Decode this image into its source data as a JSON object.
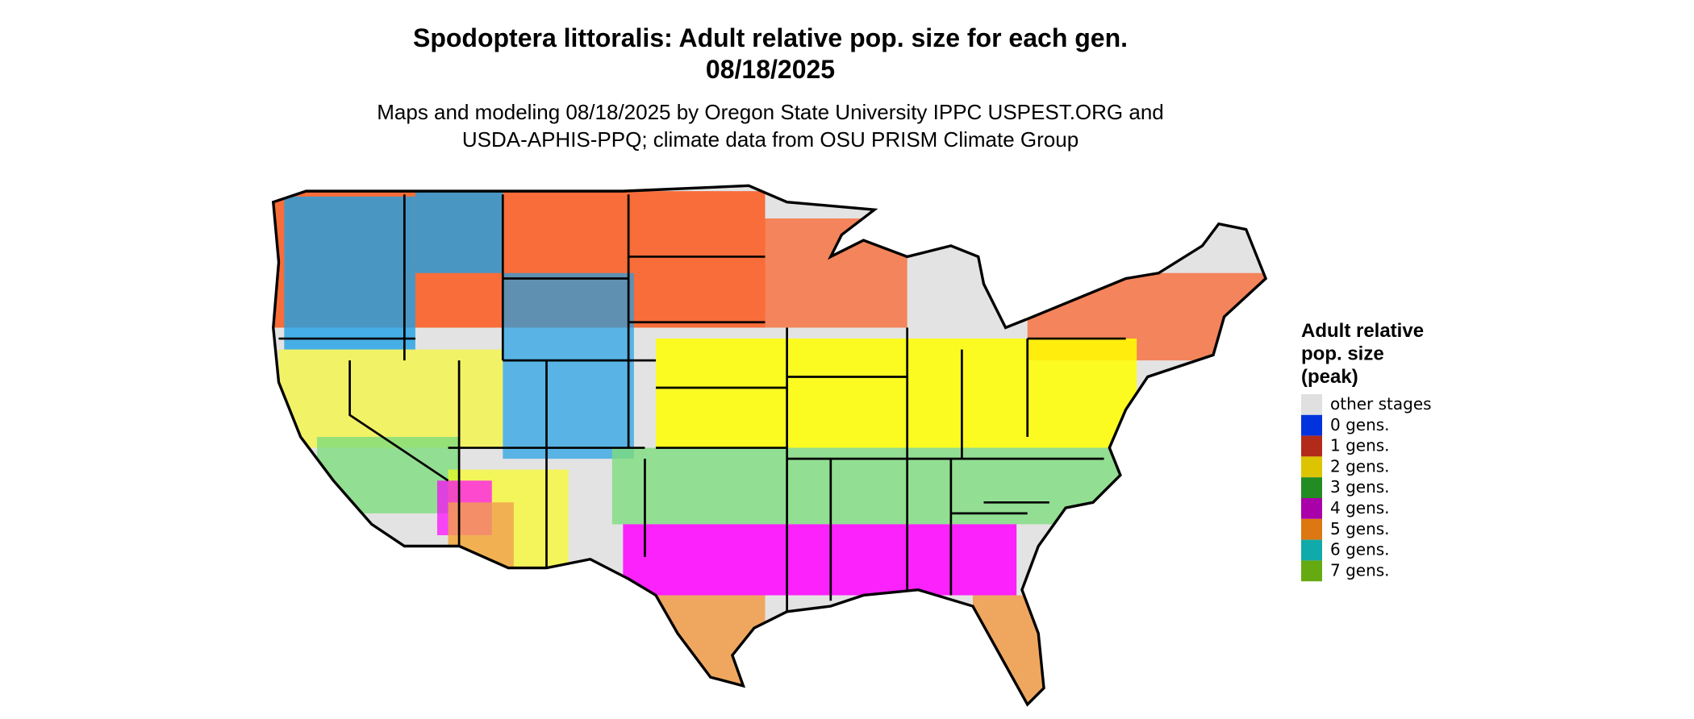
{
  "title": [
    "Spodoptera littoralis: Adult relative pop. size for each gen.",
    "08/18/2025"
  ],
  "subtitle": [
    "Maps and modeling 08/18/2025 by Oregon State University IPPC USPEST.ORG and",
    "USDA-APHIS-PPQ; climate data from OSU PRISM Climate Group"
  ],
  "legend": {
    "title": [
      "Adult relative",
      "pop. size",
      "(peak)"
    ],
    "items": [
      {
        "label": "other stages",
        "color": "#e0e0e0"
      },
      {
        "label": "0 gens.",
        "color": "#0033dd"
      },
      {
        "label": "1 gens.",
        "color": "#b22a1a"
      },
      {
        "label": "2 gens.",
        "color": "#ddc400"
      },
      {
        "label": "3 gens.",
        "color": "#228b22"
      },
      {
        "label": "4 gens.",
        "color": "#aa00aa"
      },
      {
        "label": "5 gens.",
        "color": "#dd7711"
      },
      {
        "label": "6 gens.",
        "color": "#11aaaa"
      },
      {
        "label": "7 gens.",
        "color": "#66aa11"
      }
    ]
  }
}
